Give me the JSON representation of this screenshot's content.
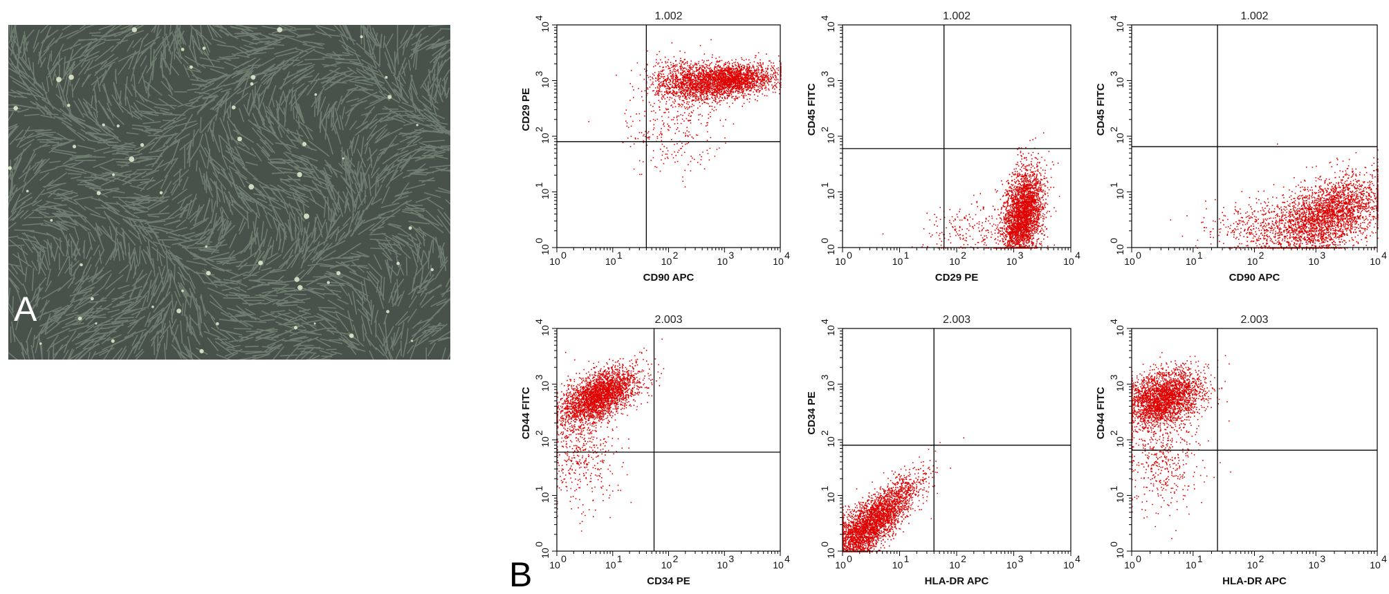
{
  "panel_a": {
    "letter": "A",
    "image": {
      "subject": "phase-contrast-micrograph",
      "dominant_color": "#48524b",
      "cell_color": "#90a090",
      "bright_cell_color": "#e6f0d2"
    }
  },
  "panel_b": {
    "letter": "B"
  },
  "colors": {
    "events": "#e00000",
    "axes": "#000000",
    "gates": "#000000"
  },
  "chart_data": [
    {
      "type": "scatter",
      "title": "1.002",
      "xlabel": "CD90 APC",
      "ylabel": "CD29 PE",
      "xscale": "log",
      "yscale": "log",
      "xlim": [
        1,
        10000
      ],
      "ylim": [
        1,
        10000
      ],
      "x_ticks": [
        "10",
        "10",
        "10",
        "10",
        "10"
      ],
      "x_tick_exp": [
        "0",
        "1",
        "2",
        "3",
        "4"
      ],
      "y_ticks": [
        "10",
        "10",
        "10",
        "10",
        "10"
      ],
      "y_tick_exp": [
        "0",
        "1",
        "2",
        "3",
        "4"
      ],
      "gate": {
        "x": 40,
        "y": 80
      },
      "clusters": [
        {
          "cx": 3,
          "cy": 3,
          "sx": 0.45,
          "sy": 0.16,
          "rho": 0.25,
          "n": 2600
        },
        {
          "cx": 2.2,
          "cy": 3.0,
          "sx": 0.3,
          "sy": 0.2,
          "rho": 0,
          "n": 600
        },
        {
          "cx": 2.1,
          "cy": 2.1,
          "sx": 0.45,
          "sy": 0.35,
          "rho": 0,
          "n": 250
        }
      ]
    },
    {
      "type": "scatter",
      "title": "1.002",
      "xlabel": "CD29 PE",
      "ylabel": "CD45 FITC",
      "xscale": "log",
      "yscale": "log",
      "xlim": [
        1,
        10000
      ],
      "ylim": [
        1,
        10000
      ],
      "x_ticks": [
        "10",
        "10",
        "10",
        "10",
        "10"
      ],
      "x_tick_exp": [
        "0",
        "1",
        "2",
        "3",
        "4"
      ],
      "y_ticks": [
        "10",
        "10",
        "10",
        "10",
        "10"
      ],
      "y_tick_exp": [
        "0",
        "1",
        "2",
        "3",
        "4"
      ],
      "gate": {
        "x": 60,
        "y": 60
      },
      "clusters": [
        {
          "cx": 3.15,
          "cy": 0.6,
          "sx": 0.18,
          "sy": 0.42,
          "rho": 0.35,
          "n": 3000
        },
        {
          "cx": 2.3,
          "cy": 0.3,
          "sx": 0.45,
          "sy": 0.25,
          "rho": 0,
          "n": 250
        }
      ]
    },
    {
      "type": "scatter",
      "title": "1.002",
      "xlabel": "CD90 APC",
      "ylabel": "CD45 FITC",
      "xscale": "log",
      "yscale": "log",
      "xlim": [
        1,
        10000
      ],
      "ylim": [
        1,
        10000
      ],
      "x_ticks": [
        "10",
        "10",
        "10",
        "10",
        "10"
      ],
      "x_tick_exp": [
        "0",
        "1",
        "2",
        "3",
        "4"
      ],
      "y_ticks": [
        "10",
        "10",
        "10",
        "10",
        "10"
      ],
      "y_tick_exp": [
        "0",
        "1",
        "2",
        "3",
        "4"
      ],
      "gate": {
        "x": 25,
        "y": 65
      },
      "clusters": [
        {
          "cx": 3.2,
          "cy": 0.6,
          "sx": 0.45,
          "sy": 0.35,
          "rho": 0.45,
          "n": 2800
        },
        {
          "cx": 2.2,
          "cy": 0.35,
          "sx": 0.5,
          "sy": 0.25,
          "rho": 0,
          "n": 450
        }
      ]
    },
    {
      "type": "scatter",
      "title": "2.003",
      "xlabel": "CD34 PE",
      "ylabel": "CD44 FITC",
      "xscale": "log",
      "yscale": "log",
      "xlim": [
        1,
        10000
      ],
      "ylim": [
        1,
        10000
      ],
      "x_ticks": [
        "10",
        "10",
        "10",
        "10",
        "10"
      ],
      "x_tick_exp": [
        "0",
        "1",
        "2",
        "3",
        "4"
      ],
      "y_ticks": [
        "10",
        "10",
        "10",
        "10",
        "10"
      ],
      "y_tick_exp": [
        "0",
        "1",
        "2",
        "3",
        "4"
      ],
      "gate": {
        "x": 55,
        "y": 60
      },
      "clusters": [
        {
          "cx": 0.75,
          "cy": 2.8,
          "sx": 0.35,
          "sy": 0.25,
          "rho": 0.55,
          "n": 2800
        },
        {
          "cx": 0.45,
          "cy": 1.8,
          "sx": 0.3,
          "sy": 0.5,
          "rho": 0,
          "n": 450
        }
      ]
    },
    {
      "type": "scatter",
      "title": "2.003",
      "xlabel": "HLA-DR APC",
      "ylabel": "CD34 PE",
      "xscale": "log",
      "yscale": "log",
      "xlim": [
        1,
        10000
      ],
      "ylim": [
        1,
        10000
      ],
      "x_ticks": [
        "10",
        "10",
        "10",
        "10",
        "10"
      ],
      "x_tick_exp": [
        "0",
        "1",
        "2",
        "3",
        "4"
      ],
      "y_ticks": [
        "10",
        "10",
        "10",
        "10",
        "10"
      ],
      "y_tick_exp": [
        "0",
        "1",
        "2",
        "3",
        "4"
      ],
      "gate": {
        "x": 40,
        "y": 80
      },
      "clusters": [
        {
          "cx": 0.55,
          "cy": 0.55,
          "sx": 0.38,
          "sy": 0.38,
          "rho": 0.82,
          "n": 3000
        },
        {
          "cx": 0.2,
          "cy": 0.3,
          "sx": 0.2,
          "sy": 0.25,
          "rho": 0,
          "n": 400
        }
      ]
    },
    {
      "type": "scatter",
      "title": "2.003",
      "xlabel": "HLA-DR APC",
      "ylabel": "CD44 FITC",
      "xscale": "log",
      "yscale": "log",
      "xlim": [
        1,
        10000
      ],
      "ylim": [
        1,
        10000
      ],
      "x_ticks": [
        "10",
        "10",
        "10",
        "10",
        "10"
      ],
      "x_tick_exp": [
        "0",
        "1",
        "2",
        "3",
        "4"
      ],
      "y_ticks": [
        "10",
        "10",
        "10",
        "10",
        "10"
      ],
      "y_tick_exp": [
        "0",
        "1",
        "2",
        "3",
        "4"
      ],
      "gate": {
        "x": 25,
        "y": 65
      },
      "clusters": [
        {
          "cx": 0.5,
          "cy": 2.75,
          "sx": 0.32,
          "sy": 0.25,
          "rho": 0.35,
          "n": 2800
        },
        {
          "cx": 0.5,
          "cy": 1.7,
          "sx": 0.3,
          "sy": 0.45,
          "rho": 0,
          "n": 450
        }
      ]
    }
  ]
}
